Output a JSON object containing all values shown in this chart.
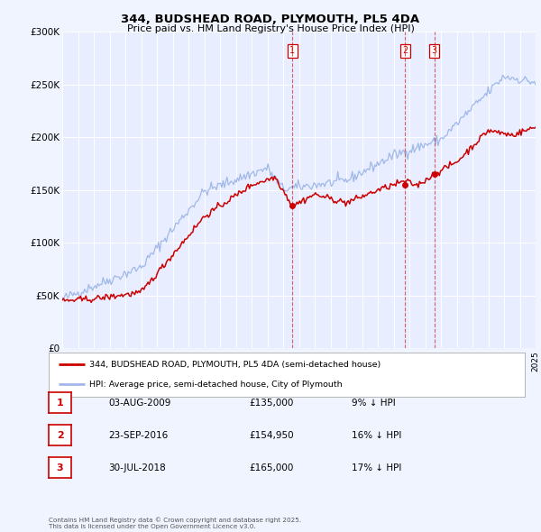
{
  "title": "344, BUDSHEAD ROAD, PLYMOUTH, PL5 4DA",
  "subtitle": "Price paid vs. HM Land Registry's House Price Index (HPI)",
  "bg_color": "#f0f4ff",
  "plot_bg_color": "#e8eeff",
  "grid_color": "#ffffff",
  "hpi_color": "#a0b8e8",
  "price_color": "#cc0000",
  "ylim": [
    0,
    300000
  ],
  "yticks": [
    0,
    50000,
    100000,
    150000,
    200000,
    250000,
    300000
  ],
  "ytick_labels": [
    "£0",
    "£50K",
    "£100K",
    "£150K",
    "£200K",
    "£250K",
    "£300K"
  ],
  "x_start_year": 1995,
  "x_end_year": 2025,
  "transactions": [
    {
      "date_num": 2009.58,
      "price": 135000,
      "label": "1"
    },
    {
      "date_num": 2016.72,
      "price": 154950,
      "label": "2"
    },
    {
      "date_num": 2018.58,
      "price": 165000,
      "label": "3"
    }
  ],
  "legend_entries": [
    {
      "label": "344, BUDSHEAD ROAD, PLYMOUTH, PL5 4DA (semi-detached house)",
      "color": "#cc0000"
    },
    {
      "label": "HPI: Average price, semi-detached house, City of Plymouth",
      "color": "#a0b8e8"
    }
  ],
  "table_rows": [
    {
      "num": "1",
      "date": "03-AUG-2009",
      "price": "£135,000",
      "hpi": "9% ↓ HPI"
    },
    {
      "num": "2",
      "date": "23-SEP-2016",
      "price": "£154,950",
      "hpi": "16% ↓ HPI"
    },
    {
      "num": "3",
      "date": "30-JUL-2018",
      "price": "£165,000",
      "hpi": "17% ↓ HPI"
    }
  ],
  "footer": "Contains HM Land Registry data © Crown copyright and database right 2025.\nThis data is licensed under the Open Government Licence v3.0."
}
